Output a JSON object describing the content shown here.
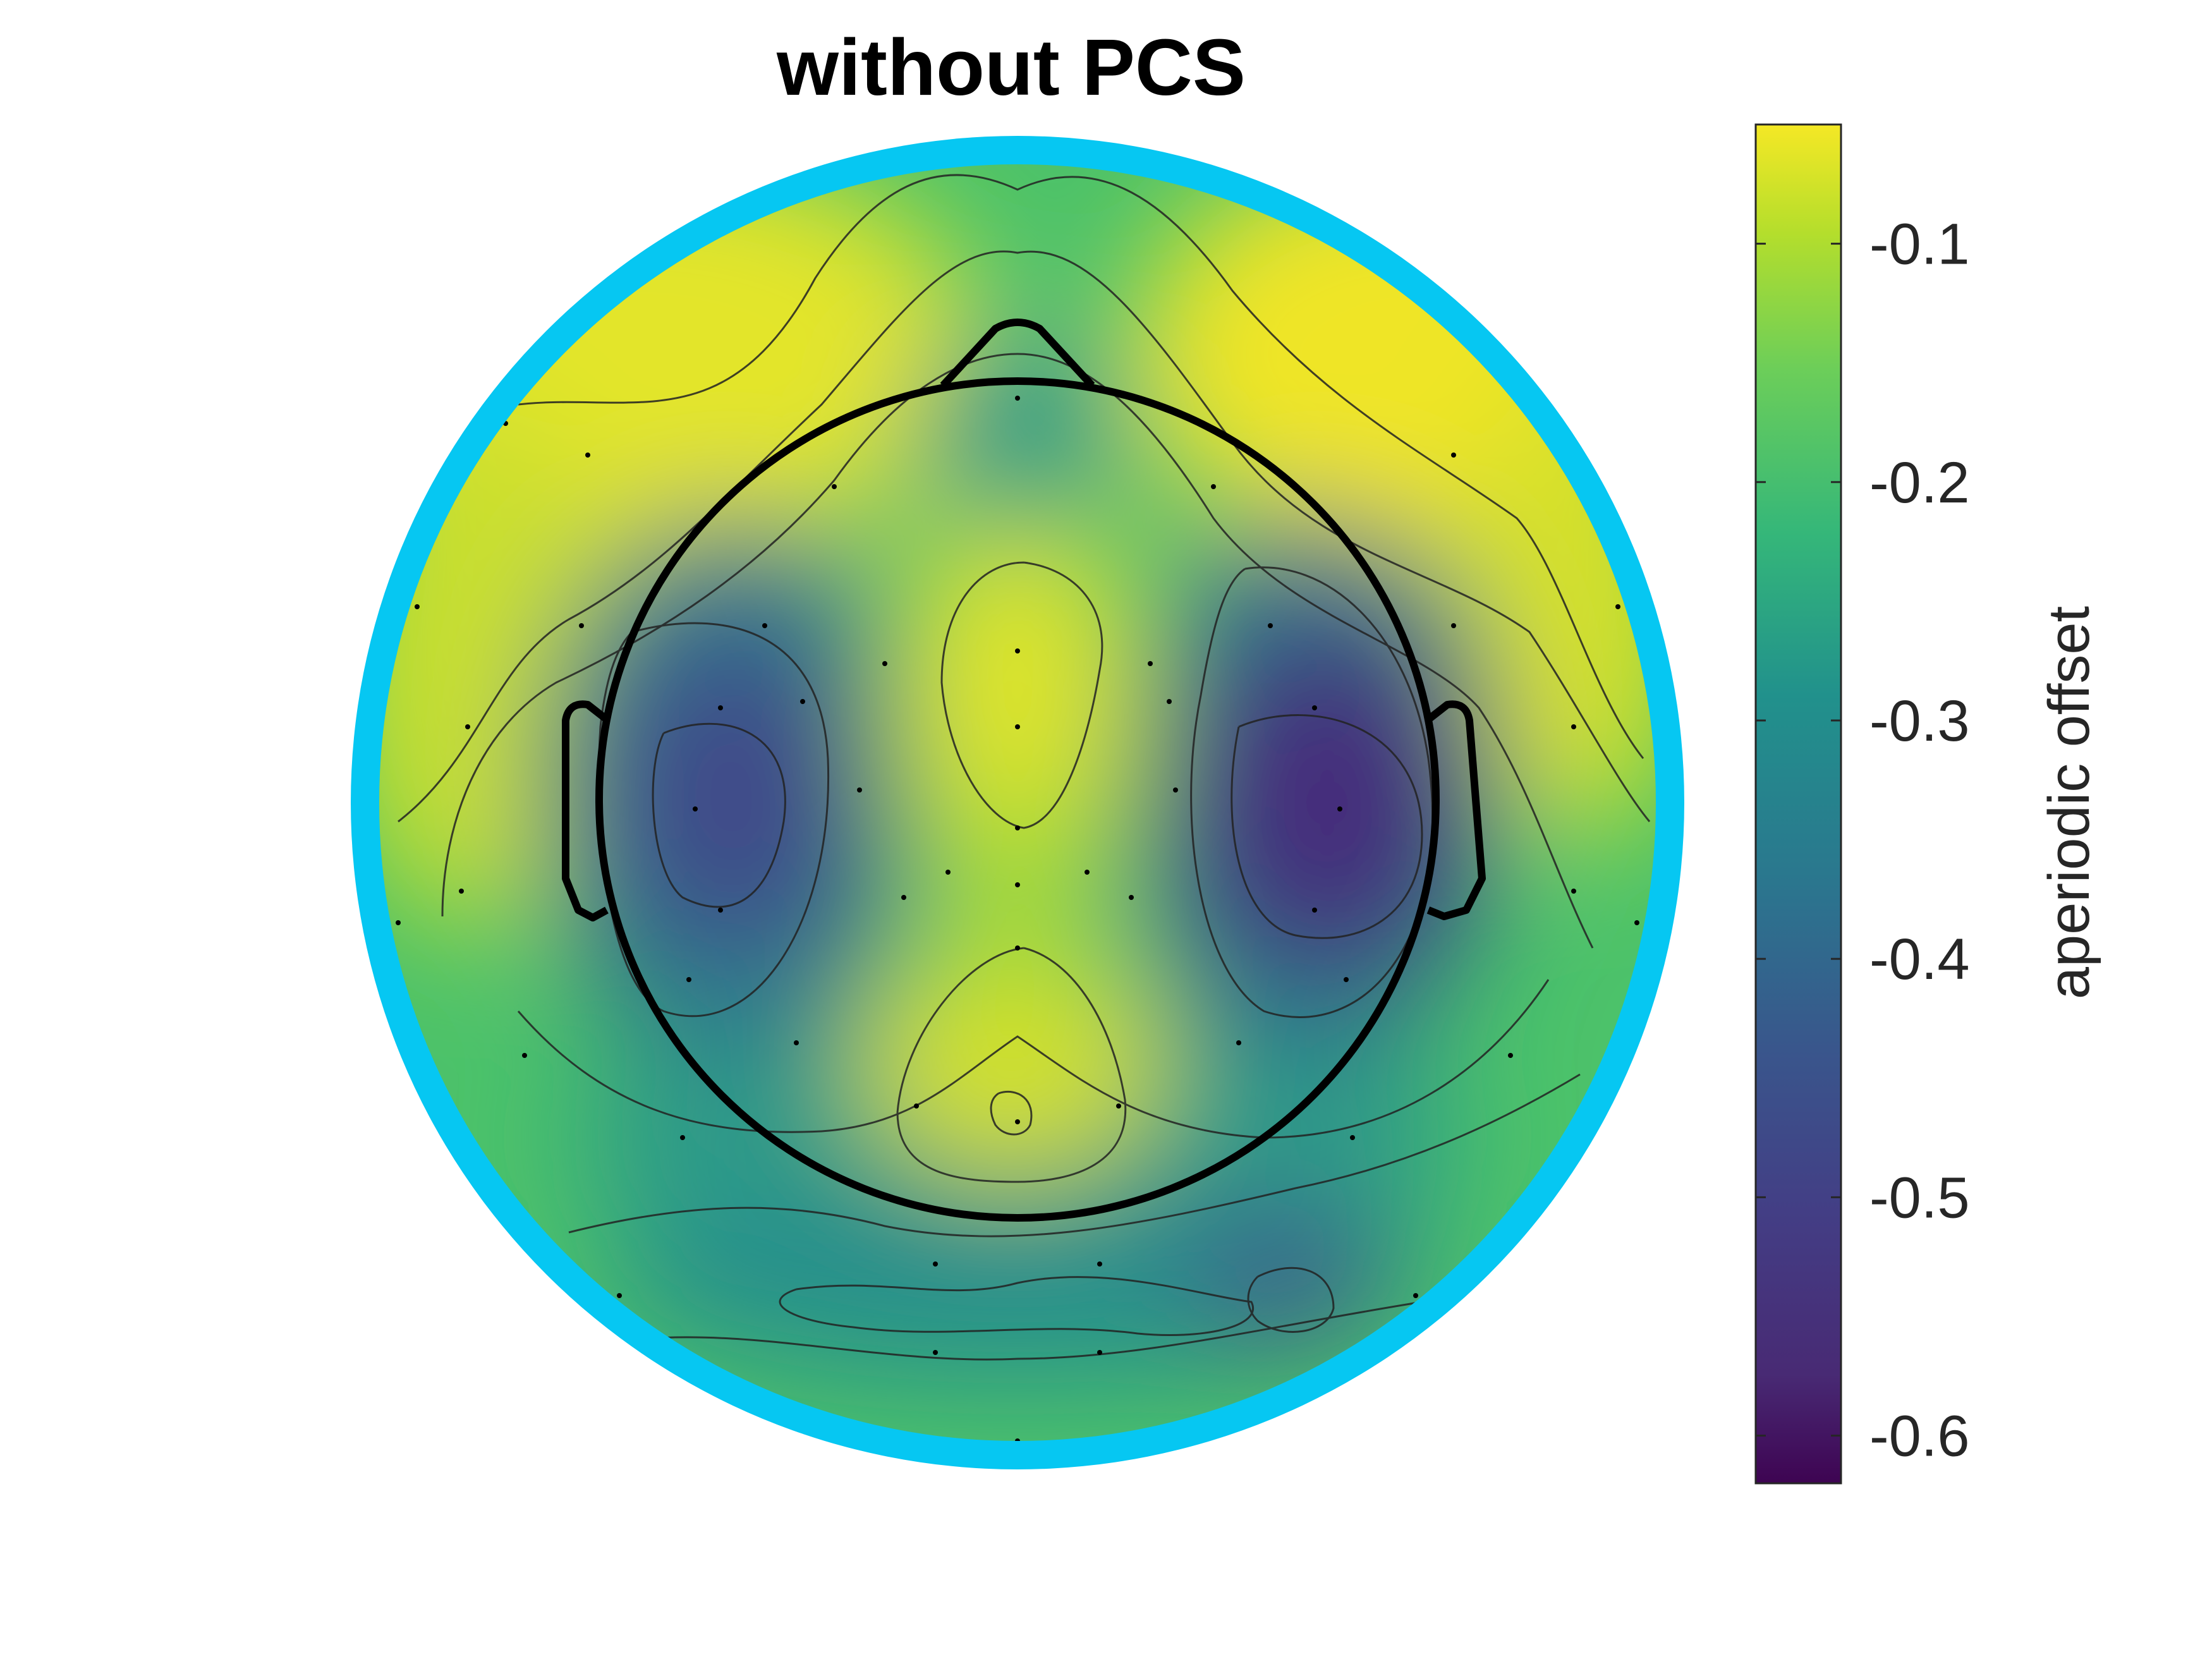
{
  "chart_data": {
    "type": "heatmap",
    "subtype": "eeg-topographic-map",
    "title": "without PCS",
    "colorbar": {
      "label": "aperiodic offset",
      "colormap": "parula",
      "range": [
        -0.62,
        -0.05
      ],
      "ticks": [
        -0.1,
        -0.2,
        -0.3,
        -0.4,
        -0.5,
        -0.6
      ],
      "tick_labels": [
        "-0.1",
        "-0.2",
        "-0.3",
        "-0.4",
        "-0.5",
        "-0.6"
      ],
      "placement": "right"
    },
    "head_outline": true,
    "contours": true,
    "electrodes_shown": true,
    "rim_color": "#06C7F2",
    "regions": [
      {
        "name": "left-temporal-minimum",
        "value": -0.47
      },
      {
        "name": "right-temporal-minimum",
        "value": -0.52
      },
      {
        "name": "central-midline-maximum",
        "value": -0.12
      },
      {
        "name": "parietal-midline-maximum",
        "value": -0.11
      },
      {
        "name": "frontal-periphery-maximum",
        "value": -0.06
      },
      {
        "name": "occipital-band",
        "value": -0.33
      }
    ]
  }
}
